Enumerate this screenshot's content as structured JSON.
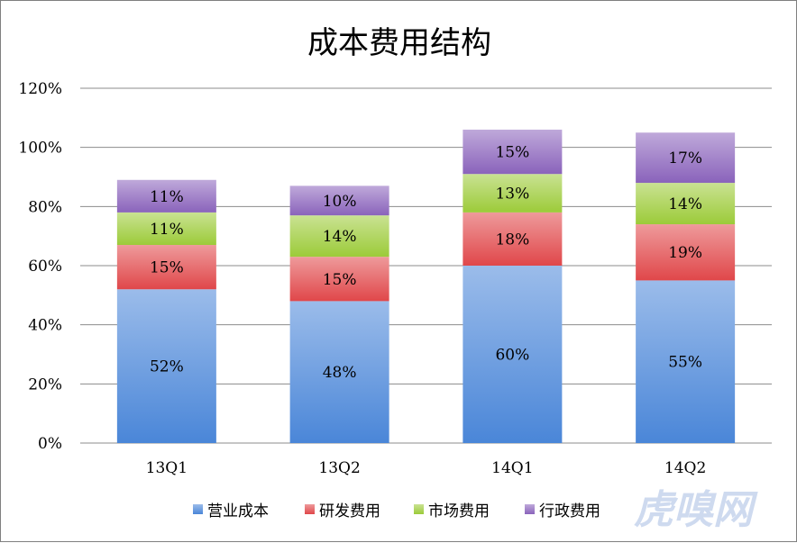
{
  "chart_data": {
    "type": "bar",
    "stacked": true,
    "title": "成本费用结构",
    "categories": [
      "13Q1",
      "13Q2",
      "14Q1",
      "14Q2"
    ],
    "series": [
      {
        "name": "营业成本",
        "values": [
          52,
          48,
          60,
          55
        ],
        "labels": [
          "52%",
          "48%",
          "60%",
          "55%"
        ],
        "color": "#4a86d8"
      },
      {
        "name": "研发费用",
        "values": [
          15,
          15,
          18,
          19
        ],
        "labels": [
          "15%",
          "15%",
          "18%",
          "19%"
        ],
        "color": "#e0474a"
      },
      {
        "name": "市场费用",
        "values": [
          11,
          14,
          13,
          14
        ],
        "labels": [
          "11%",
          "14%",
          "13%",
          "14%"
        ],
        "color": "#9ccb39"
      },
      {
        "name": "行政费用",
        "values": [
          11,
          10,
          15,
          17
        ],
        "labels": [
          "11%",
          "10%",
          "15%",
          "17%"
        ],
        "color": "#8a63bb"
      }
    ],
    "ylim": [
      0,
      120
    ],
    "yticks": [
      0,
      20,
      40,
      60,
      80,
      100,
      120
    ],
    "ytick_labels": [
      "0%",
      "20%",
      "40%",
      "60%",
      "80%",
      "100%",
      "120%"
    ],
    "grid": true,
    "legend_position": "bottom"
  },
  "watermark": "虎嗅网"
}
